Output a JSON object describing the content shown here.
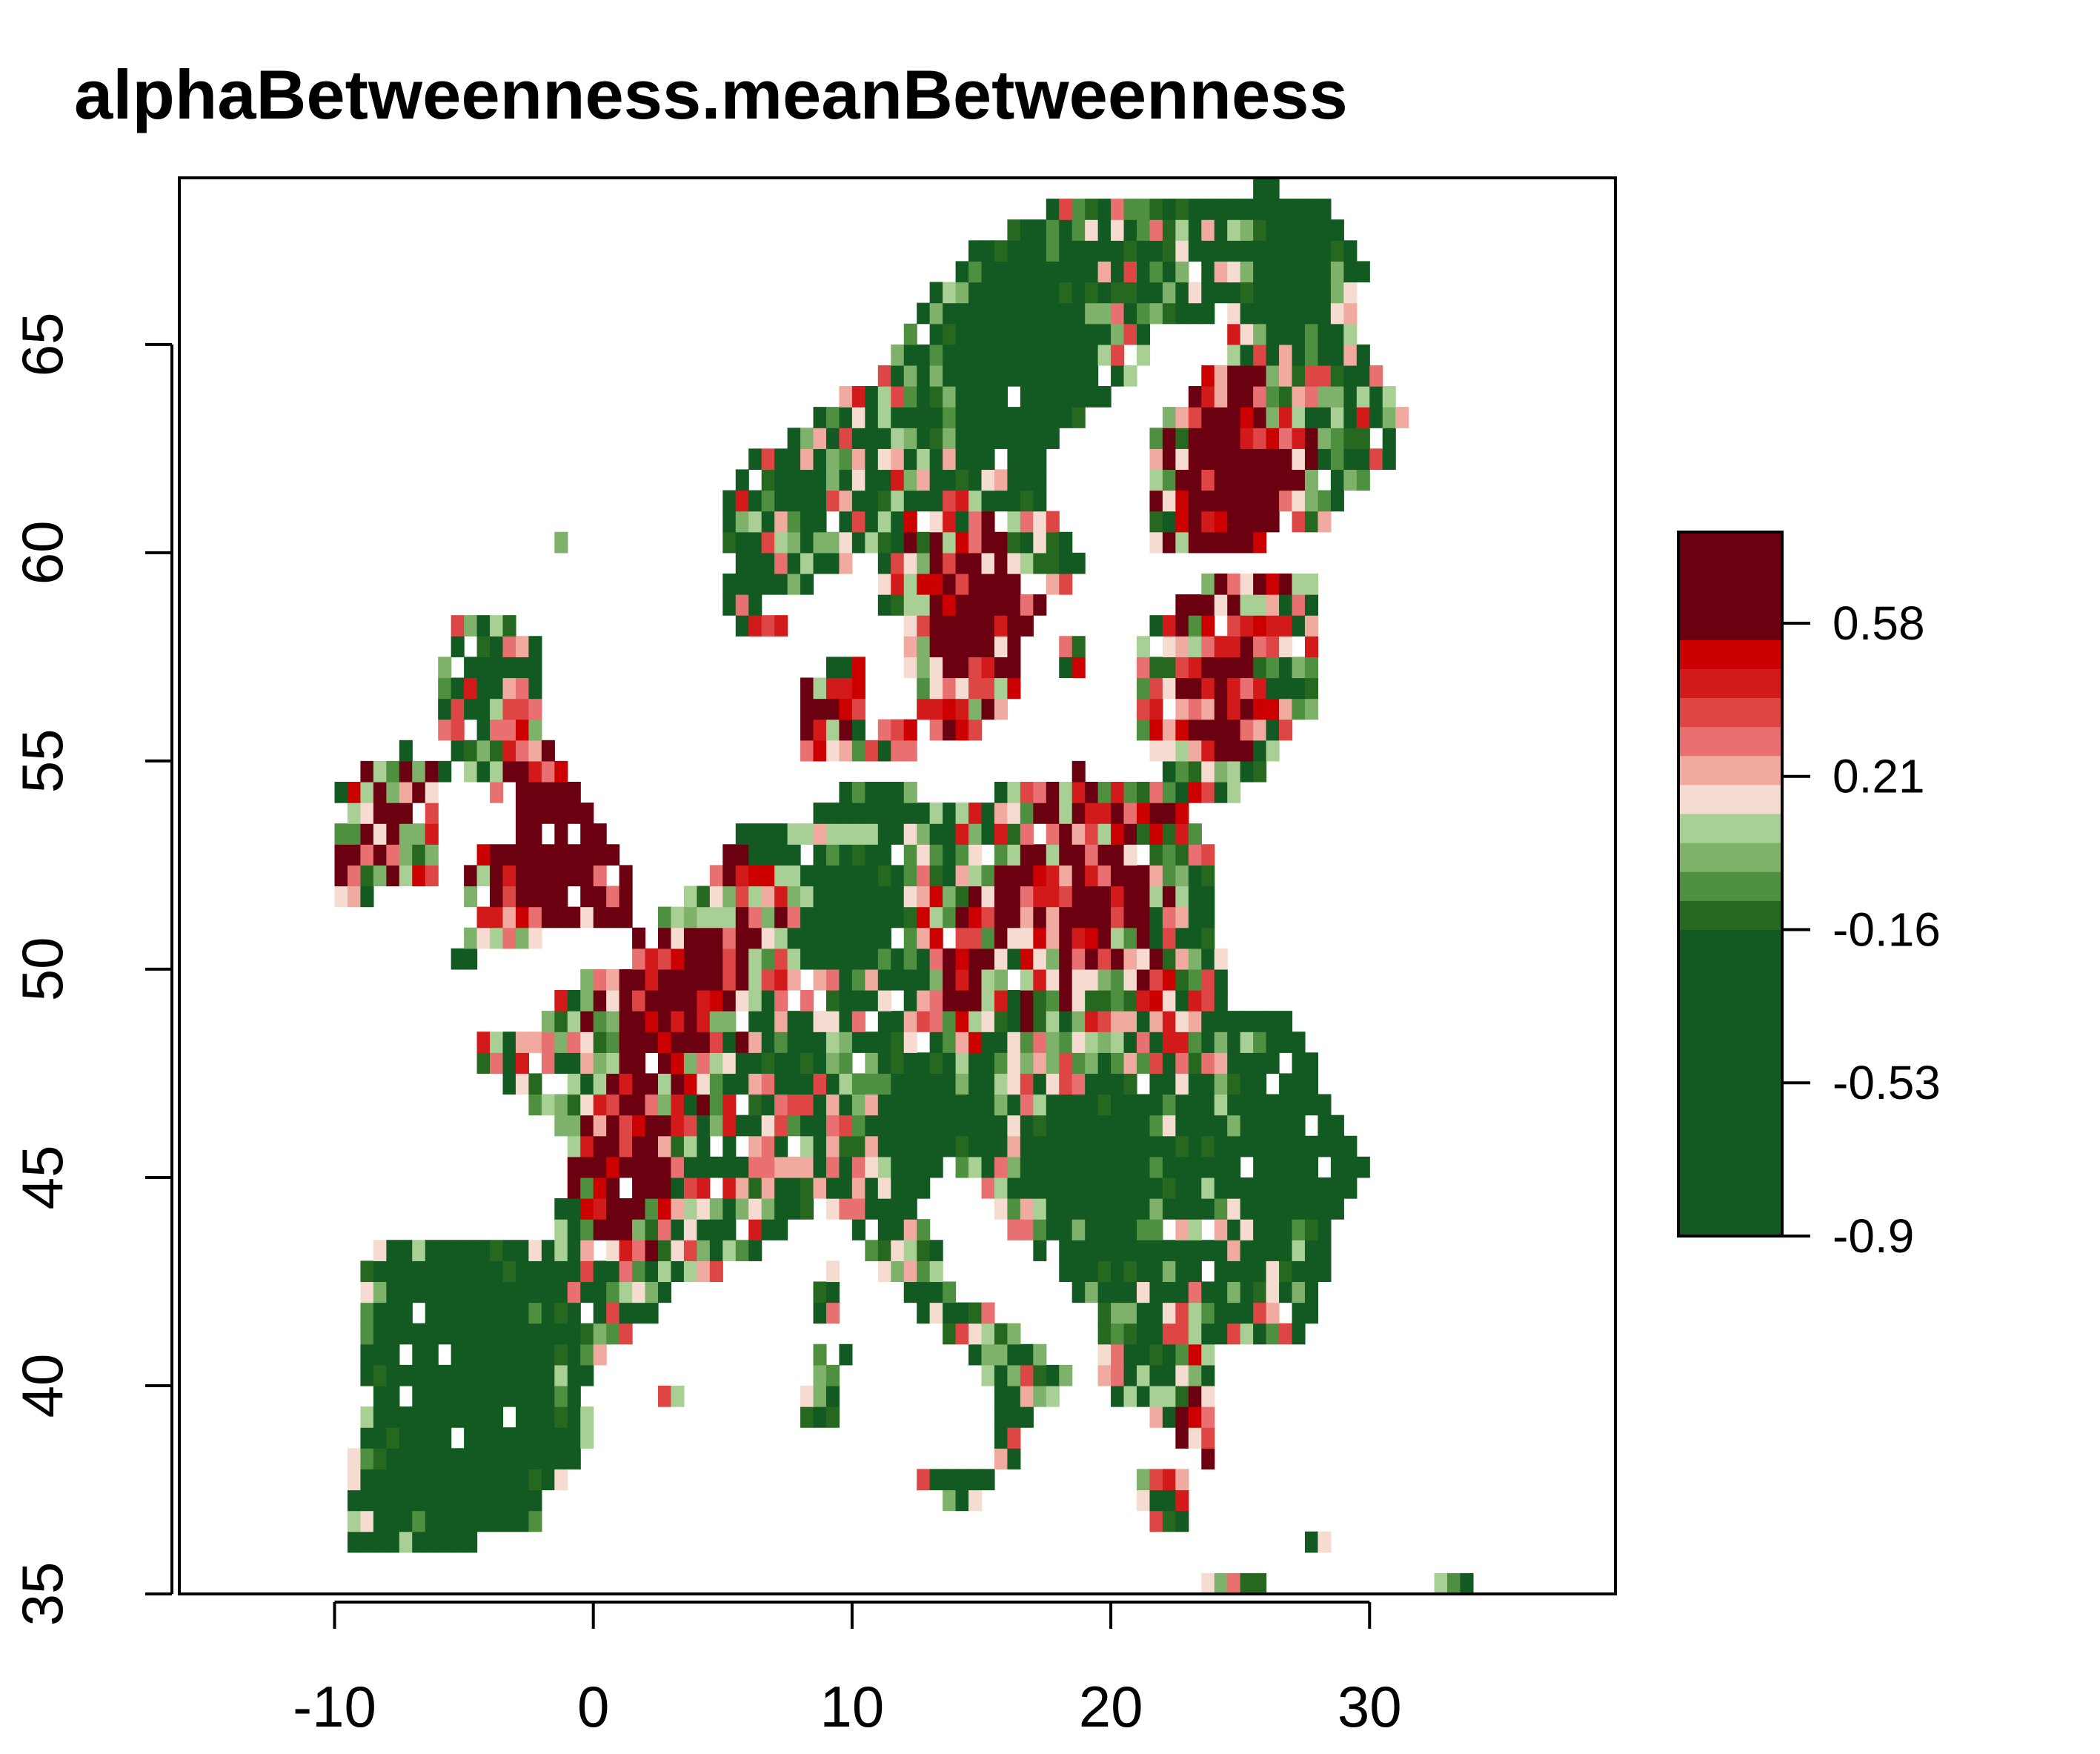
{
  "title": "alphaBetweenness.meanBetweenness",
  "x_axis": {
    "range": [
      -16,
      39.5
    ],
    "ticks": [
      -10,
      0,
      10,
      20,
      30
    ],
    "tick_labels": [
      "-10",
      "0",
      "10",
      "20",
      "30"
    ]
  },
  "y_axis": {
    "range": [
      35,
      69
    ],
    "ticks": [
      35,
      40,
      45,
      50,
      55,
      60,
      65
    ],
    "tick_labels": [
      "35",
      "40",
      "45",
      "50",
      "55",
      "60",
      "65"
    ]
  },
  "legend": {
    "range": [
      -0.9,
      0.8
    ],
    "ticks": [
      -0.9,
      -0.53,
      -0.16,
      0.21,
      0.58
    ],
    "tick_labels": [
      "-0.9",
      "-0.53",
      "-0.16",
      "0.21",
      "0.58"
    ],
    "breaks": [
      -0.9,
      -0.16,
      -0.09,
      -0.02,
      0.05,
      0.12,
      0.19,
      0.26,
      0.33,
      0.4,
      0.47,
      0.54,
      0.62,
      0.8
    ],
    "colors": [
      "#135a22",
      "#26681f",
      "#4e8f40",
      "#7eb16a",
      "#a8d094",
      "#f6dcd0",
      "#f0aaa0",
      "#e87070",
      "#de4545",
      "#d31a1a",
      "#cc0000",
      "#6b0010",
      "#6b0010"
    ]
  },
  "palette": {
    "dark_green": "#135a22",
    "mid_green": "#4e8f40",
    "light_green": "#a8d094",
    "pale_pink": "#f6dcd0",
    "red": "#cc0000",
    "dark_red": "#6b0010"
  }
}
